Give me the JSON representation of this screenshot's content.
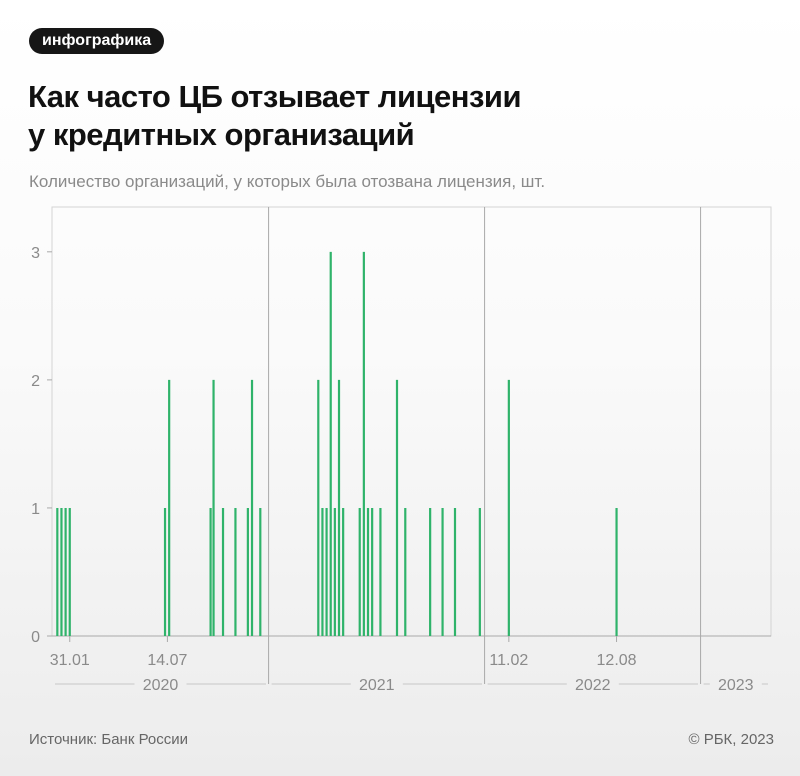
{
  "tag": "инфографика",
  "title_line1": "Как часто ЦБ отзывает лицензии",
  "title_line2": "у кредитных организаций",
  "subtitle": "Количество организаций, у которых была отозвана лицензия, шт.",
  "source": "Источник: Банк России",
  "copyright": "© РБК, 2023",
  "colors": {
    "bar": "#2fb36a",
    "grid": "#d4d4d4",
    "axis": "#a9a9a9",
    "label": "#8a8a8a"
  },
  "chart_data": {
    "type": "bar",
    "xlabel": "",
    "ylabel": "",
    "ylim": [
      0,
      3.35
    ],
    "yticks": [
      0,
      1,
      2,
      3
    ],
    "x_domain": [
      "2020-01-01",
      "2023-04-30"
    ],
    "date_labels": [
      {
        "date": "2020-01-31",
        "label": "31.01"
      },
      {
        "date": "2020-07-14",
        "label": "14.07"
      },
      {
        "date": "2022-02-11",
        "label": "11.02"
      },
      {
        "date": "2022-08-12",
        "label": "12.08"
      }
    ],
    "year_labels": [
      {
        "year": "2020",
        "from": "2020-01-01",
        "to": "2020-12-31"
      },
      {
        "year": "2021",
        "from": "2021-01-01",
        "to": "2021-12-31"
      },
      {
        "year": "2022",
        "from": "2022-01-01",
        "to": "2022-12-31"
      },
      {
        "year": "2023",
        "from": "2023-01-01",
        "to": "2023-04-30"
      }
    ],
    "year_dividers": [
      "2021-01-01",
      "2022-01-01",
      "2023-01-01"
    ],
    "points": [
      {
        "date": "2020-01-10",
        "value": 1
      },
      {
        "date": "2020-01-17",
        "value": 1
      },
      {
        "date": "2020-01-24",
        "value": 1
      },
      {
        "date": "2020-01-31",
        "value": 1
      },
      {
        "date": "2020-07-10",
        "value": 1
      },
      {
        "date": "2020-07-17",
        "value": 2
      },
      {
        "date": "2020-09-25",
        "value": 1
      },
      {
        "date": "2020-09-30",
        "value": 2
      },
      {
        "date": "2020-10-16",
        "value": 1
      },
      {
        "date": "2020-11-06",
        "value": 1
      },
      {
        "date": "2020-11-27",
        "value": 1
      },
      {
        "date": "2020-12-04",
        "value": 2
      },
      {
        "date": "2020-12-18",
        "value": 1
      },
      {
        "date": "2021-03-26",
        "value": 2
      },
      {
        "date": "2021-04-02",
        "value": 1
      },
      {
        "date": "2021-04-09",
        "value": 1
      },
      {
        "date": "2021-04-16",
        "value": 3
      },
      {
        "date": "2021-04-23",
        "value": 1
      },
      {
        "date": "2021-04-30",
        "value": 2
      },
      {
        "date": "2021-05-07",
        "value": 1
      },
      {
        "date": "2021-06-04",
        "value": 1
      },
      {
        "date": "2021-06-11",
        "value": 3
      },
      {
        "date": "2021-06-18",
        "value": 1
      },
      {
        "date": "2021-06-25",
        "value": 1
      },
      {
        "date": "2021-07-09",
        "value": 1
      },
      {
        "date": "2021-08-06",
        "value": 2
      },
      {
        "date": "2021-08-20",
        "value": 1
      },
      {
        "date": "2021-10-01",
        "value": 1
      },
      {
        "date": "2021-10-22",
        "value": 1
      },
      {
        "date": "2021-11-12",
        "value": 1
      },
      {
        "date": "2021-12-24",
        "value": 1
      },
      {
        "date": "2022-02-11",
        "value": 2
      },
      {
        "date": "2022-08-12",
        "value": 1
      }
    ]
  }
}
